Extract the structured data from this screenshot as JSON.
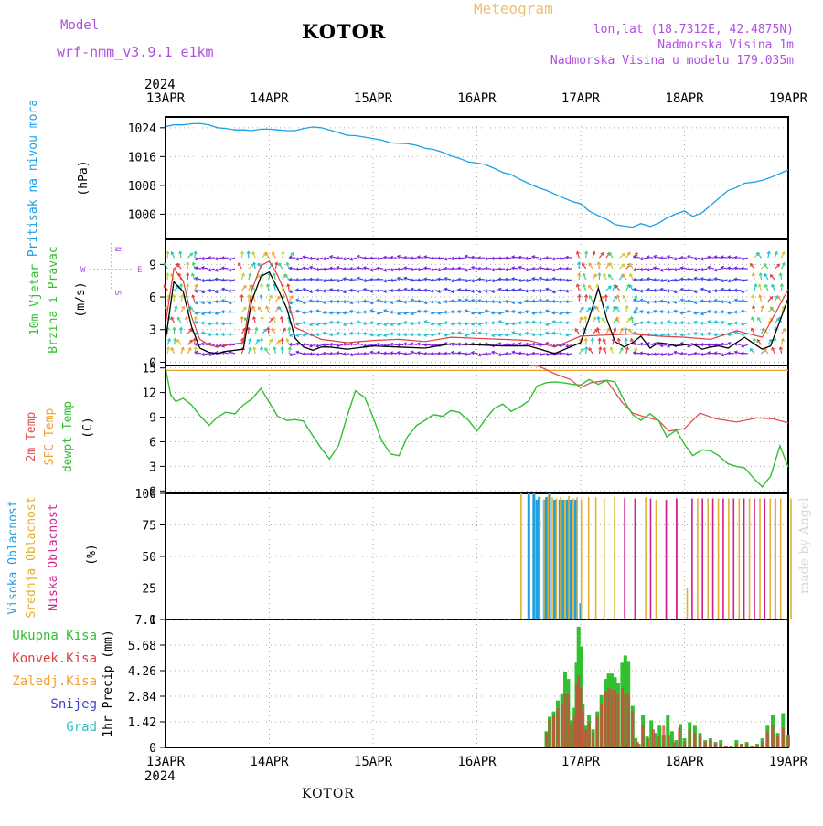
{
  "header": {
    "title": "KOTOR",
    "model_label": "Model",
    "model_name": "wrf-nmm_v3.9.1 e1km",
    "meteogram_label": "Meteogram",
    "lonlat": "lon,lat (18.7312E, 42.4875N)",
    "elevation": "Nadmorska Visina 1m",
    "model_elevation": "Nadmorska Visina u modelu 179.035m",
    "bottom_name": "KOTOR",
    "made_by": "made by Angel"
  },
  "colors": {
    "pressure": "#1aa0e8",
    "wind_speed": "#000000",
    "gust": "#e04040",
    "temp_2m": "#e05050",
    "sfc_temp": "#f0a030",
    "dewpoint": "#30c030",
    "high_cloud": "#20a0e0",
    "mid_cloud": "#e0b030",
    "low_cloud": "#d02090",
    "total_precip": "#30c030",
    "conv_precip": "#e04040",
    "snow": "#4040d0",
    "hail": "#30c0c0"
  },
  "chart_data": [
    {
      "type": "line",
      "name": "pressure",
      "year": "2024",
      "x_tick_labels": [
        "13APR",
        "14APR",
        "15APR",
        "16APR",
        "17APR",
        "18APR",
        "19APR"
      ],
      "ylabel_lines": [
        "Pritisak na nivou mora",
        "(hPa)"
      ],
      "ylim": [
        993,
        1027
      ],
      "yticks": [
        1000,
        1008,
        1016,
        1024
      ],
      "grid": true,
      "x_days": [
        0,
        0.08,
        0.17,
        0.25,
        0.33,
        0.42,
        0.5,
        0.58,
        0.67,
        0.75,
        0.83,
        0.92,
        1,
        1.08,
        1.17,
        1.25,
        1.33,
        1.42,
        1.5,
        1.58,
        1.67,
        1.75,
        1.83,
        1.92,
        2,
        2.08,
        2.17,
        2.25,
        2.33,
        2.42,
        2.5,
        2.58,
        2.67,
        2.75,
        2.83,
        2.92,
        3,
        3.08,
        3.17,
        3.25,
        3.33,
        3.42,
        3.5,
        3.58,
        3.67,
        3.75,
        3.83,
        3.92,
        4,
        4.08,
        4.17,
        4.25,
        4.33,
        4.42,
        4.5,
        4.58,
        4.67,
        4.75,
        4.83,
        4.92,
        5,
        5.08,
        5.17,
        5.25,
        5.33,
        5.42,
        5.5,
        5.58,
        5.67,
        5.75,
        5.83,
        5.92,
        6
      ],
      "values": [
        1024.3,
        1024.8,
        1024.8,
        1025.1,
        1025.2,
        1024.8,
        1024,
        1023.8,
        1023.4,
        1023.4,
        1023.2,
        1023.6,
        1023.6,
        1023.4,
        1023.2,
        1023.2,
        1023.8,
        1024.2,
        1024,
        1023.4,
        1022.6,
        1021.9,
        1021.8,
        1021.4,
        1021,
        1020.6,
        1019.8,
        1019.7,
        1019.6,
        1019.1,
        1018.3,
        1018,
        1017.2,
        1016.2,
        1015.5,
        1014.5,
        1014.2,
        1013.8,
        1012.7,
        1011.6,
        1011,
        1009.6,
        1008.5,
        1007.5,
        1006.6,
        1005.6,
        1004.6,
        1003.5,
        1002.9,
        1000.9,
        999.6,
        998.6,
        997.1,
        996.7,
        996.4,
        997.4,
        996.6,
        997.5,
        998.9,
        1000.1,
        1000.9,
        999.4,
        1000.4,
        1002.4,
        1004.4,
        1006.6,
        1007.4,
        1008.6,
        1008.9,
        1009.4,
        1010.2,
        1011.3,
        1012.3
      ]
    },
    {
      "type": "line",
      "name": "wind",
      "ylabel_lines": [
        "10m Vjetar",
        "Brzina i Pravac",
        "(m/s)"
      ],
      "ylim": [
        -0.3,
        11.3
      ],
      "yticks": [
        0,
        3,
        6,
        9
      ],
      "grid": true,
      "compass_labels": [
        "W",
        "E",
        "N",
        "S"
      ],
      "series": [
        {
          "name": "wind_speed",
          "x_days": [
            0,
            0.08,
            0.17,
            0.25,
            0.33,
            0.42,
            0.5,
            0.58,
            0.67,
            0.75,
            0.83,
            0.92,
            1,
            1.08,
            1.17,
            1.25,
            1.33,
            1.42,
            1.5,
            1.58,
            1.67,
            1.75,
            1.83,
            1.92,
            2,
            2.25,
            2.5,
            2.75,
            3,
            3.25,
            3.5,
            3.75,
            4,
            4.08,
            4.17,
            4.25,
            4.33,
            4.42,
            4.5,
            4.58,
            4.67,
            4.75,
            4.83,
            4.92,
            5,
            5.08,
            5.17,
            5.25,
            5.33,
            5.42,
            5.5,
            5.58,
            5.67,
            5.75,
            5.83,
            5.92,
            6
          ],
          "values": [
            2,
            7.4,
            6.5,
            3.3,
            1.3,
            0.9,
            0.8,
            1,
            1.1,
            1.2,
            5.6,
            7.9,
            8.3,
            6.8,
            4.9,
            2.2,
            1.4,
            1.1,
            1.4,
            1.4,
            1.3,
            1.2,
            1.3,
            1.4,
            1.5,
            1.4,
            1.3,
            1.7,
            1.6,
            1.5,
            1.5,
            0.8,
            1.8,
            4,
            6.8,
            4,
            1.9,
            1.4,
            1.8,
            2.4,
            1.3,
            1.8,
            1.7,
            1.5,
            1.6,
            1.7,
            1.2,
            1.4,
            1.5,
            1.3,
            1.8,
            2.3,
            1.7,
            1.2,
            1.5,
            3.8,
            5.9
          ]
        },
        {
          "name": "gust",
          "x_days": [
            0,
            0.08,
            0.17,
            0.25,
            0.33,
            0.42,
            0.5,
            0.58,
            0.67,
            0.75,
            0.83,
            0.92,
            1,
            1.08,
            1.17,
            1.25,
            1.5,
            1.75,
            2,
            2.25,
            2.5,
            2.75,
            3,
            3.25,
            3.5,
            3.75,
            4,
            4.25,
            4.5,
            4.75,
            5,
            5.25,
            5.5,
            5.75,
            6
          ],
          "values": [
            3.5,
            8.6,
            7.5,
            4.2,
            2.1,
            1.6,
            1.4,
            1.6,
            1.7,
            1.8,
            6.6,
            8.9,
            9.3,
            8,
            6,
            3.2,
            2.1,
            1.8,
            2,
            2.1,
            1.9,
            2.3,
            2.2,
            2.1,
            2,
            1.4,
            2.4,
            2.5,
            2.6,
            2.4,
            2.3,
            2.1,
            2.9,
            2.3,
            6.7
          ]
        }
      ]
    },
    {
      "type": "line",
      "name": "temperature",
      "ylabel_lines": [
        "2m Temp",
        "SFC Temp",
        "dewpt Temp",
        "(C)"
      ],
      "ylim": [
        -0.3,
        15.3
      ],
      "yticks": [
        0,
        3,
        6,
        9,
        12,
        15
      ],
      "grid": true,
      "series": [
        {
          "name": "2m Temp",
          "x_days": [
            3.5,
            3.6,
            3.75,
            3.9,
            4.0,
            4.1,
            4.25,
            4.4,
            4.5,
            4.6,
            4.75,
            4.85,
            5.0,
            5.15,
            5.3,
            5.5,
            5.7,
            5.85,
            6.0
          ],
          "values": [
            15.3,
            15.2,
            14.3,
            13.6,
            12.6,
            13.2,
            13.5,
            10.8,
            9.5,
            9.1,
            8.6,
            7.3,
            7.6,
            9.5,
            8.8,
            8.4,
            8.9,
            8.8,
            8.3
          ]
        },
        {
          "name": "SFC Temp",
          "x_days": [
            0,
            6
          ],
          "values": [
            14.7,
            14.7
          ]
        },
        {
          "name": "dewpt Temp",
          "x_days": [
            0,
            0.05,
            0.1,
            0.17,
            0.25,
            0.33,
            0.42,
            0.5,
            0.58,
            0.67,
            0.75,
            0.83,
            0.92,
            1,
            1.08,
            1.17,
            1.25,
            1.33,
            1.42,
            1.5,
            1.58,
            1.67,
            1.75,
            1.83,
            1.92,
            2,
            2.08,
            2.17,
            2.25,
            2.33,
            2.42,
            2.5,
            2.58,
            2.67,
            2.75,
            2.83,
            2.92,
            3,
            3.08,
            3.17,
            3.25,
            3.33,
            3.42,
            3.5,
            3.58,
            3.67,
            3.75,
            3.83,
            3.92,
            4,
            4.08,
            4.17,
            4.25,
            4.33,
            4.42,
            4.5,
            4.58,
            4.67,
            4.75,
            4.83,
            4.92,
            5,
            5.08,
            5.17,
            5.25,
            5.33,
            5.42,
            5.5,
            5.58,
            5.67,
            5.75,
            5.83,
            5.92,
            6
          ],
          "values": [
            15,
            11.7,
            10.9,
            11.3,
            10.5,
            9.2,
            8,
            9,
            9.6,
            9.4,
            10.5,
            11.2,
            12.5,
            10.8,
            9.1,
            8.6,
            8.7,
            8.5,
            6.7,
            5.2,
            3.9,
            5.6,
            9.1,
            12.2,
            11.4,
            9,
            6.2,
            4.5,
            4.3,
            6.6,
            8,
            8.6,
            9.3,
            9.1,
            9.8,
            9.6,
            8.6,
            7.3,
            8.7,
            10.1,
            10.6,
            9.7,
            10.3,
            11,
            12.8,
            13.2,
            13.3,
            13.2,
            13,
            12.9,
            13.6,
            13,
            13.5,
            13.3,
            11,
            9.3,
            8.6,
            9.4,
            8.6,
            6.6,
            7.4,
            5.7,
            4.3,
            5,
            4.9,
            4.3,
            3.3,
            3,
            2.8,
            1.5,
            0.5,
            1.8,
            5.5,
            2.9
          ]
        }
      ]
    },
    {
      "type": "bar",
      "name": "cloud cover",
      "ylabel_lines": [
        "Visoka Oblacnost",
        "Srednja Oblacnost",
        "Niska Oblacnost",
        "(%)"
      ],
      "ylim": [
        0,
        100
      ],
      "yticks": [
        0,
        25,
        50,
        75,
        100
      ],
      "grid": true,
      "series": [
        {
          "name": "Visoka Oblacnost",
          "x_days": [
            3.5,
            3.55,
            3.55,
            3.58,
            3.6,
            3.65,
            3.67,
            3.7,
            3.75,
            3.8,
            3.83,
            3.87,
            3.9,
            3.92,
            3.95,
            4.0
          ],
          "values": [
            100,
            100,
            95,
            95,
            97,
            95,
            97,
            100,
            95,
            95,
            95,
            95,
            95,
            95,
            95,
            13
          ]
        },
        {
          "name": "Srednja Oblacnost",
          "x_days": [
            3.4,
            3.58,
            3.62,
            3.66,
            3.7,
            3.74,
            3.78,
            3.82,
            3.86,
            3.9,
            3.94,
            3.98,
            4.05,
            4.12,
            4.2,
            4.3,
            4.4,
            4.5,
            4.6,
            4.7,
            4.8,
            4.9,
            5.0,
            5.1,
            5.2,
            5.3,
            5.4,
            5.5,
            5.6,
            5.7,
            5.8,
            5.9,
            6.0
          ],
          "values": [
            100,
            98,
            95,
            98,
            97,
            96,
            97,
            95,
            98,
            96,
            97,
            95,
            97,
            97,
            96,
            97,
            97,
            96,
            97,
            95,
            95,
            96,
            25,
            96,
            96,
            96,
            96,
            96,
            96,
            96,
            96,
            96,
            96
          ]
        },
        {
          "name": "Niska Oblacnost",
          "x_days": [
            4.45,
            4.55,
            4.7,
            4.85,
            4.95,
            5.1,
            5.2,
            5.3,
            5.4,
            5.5,
            5.6,
            5.7,
            5.8,
            5.9
          ],
          "values": [
            96,
            96,
            96,
            95,
            96,
            96,
            96,
            96,
            96,
            96,
            96,
            96,
            96,
            96
          ]
        }
      ]
    },
    {
      "type": "bar",
      "name": "precipitation",
      "ylabel_lines": [
        "Ukupna Kisa",
        "Konvek.Kisa",
        "Zaledj.Kisa",
        "Snijeg",
        "Grad",
        "1hr Precip (mm)"
      ],
      "ylim": [
        0,
        7.1
      ],
      "yticks": [
        0,
        1.42,
        2.84,
        4.26,
        5.68,
        7.1
      ],
      "grid": true,
      "series": [
        {
          "name": "Ukupna Kisa",
          "x_days": [
            3.67,
            3.7,
            3.74,
            3.78,
            3.82,
            3.85,
            3.88,
            3.91,
            3.94,
            3.96,
            3.98,
            4.0,
            4.02,
            4.05,
            4.08,
            4.12,
            4.16,
            4.2,
            4.24,
            4.27,
            4.3,
            4.33,
            4.36,
            4.4,
            4.43,
            4.46,
            4.5,
            4.53,
            4.56,
            4.6,
            4.64,
            4.68,
            4.72,
            4.76,
            4.8,
            4.84,
            4.88,
            4.92,
            4.96,
            5.0,
            5.05,
            5.1,
            5.15,
            5.2,
            5.25,
            5.3,
            5.35,
            5.4,
            5.45,
            5.5,
            5.55,
            5.6,
            5.65,
            5.7,
            5.75,
            5.8,
            5.85,
            5.9,
            5.95,
            6.0
          ],
          "values": [
            0.9,
            1.7,
            2.0,
            2.6,
            3.0,
            4.2,
            3.8,
            1.5,
            2.2,
            4.7,
            6.7,
            5.6,
            2.4,
            1.2,
            1.8,
            1.0,
            2.0,
            2.9,
            3.8,
            4.1,
            4.1,
            3.9,
            3.6,
            4.7,
            5.1,
            4.8,
            2.3,
            0.5,
            0.2,
            1.8,
            0.6,
            1.5,
            0.8,
            1.2,
            0.7,
            1.8,
            0.9,
            0.4,
            1.3,
            0.5,
            1.4,
            1.2,
            0.8,
            0.4,
            0.5,
            0.3,
            0.4,
            0.1,
            0.1,
            0.4,
            0.2,
            0.3,
            0.1,
            0.2,
            0.5,
            1.2,
            1.8,
            0.8,
            1.9,
            0.7
          ]
        },
        {
          "name": "Konvek.Kisa",
          "x_days": [
            3.67,
            3.7,
            3.74,
            3.78,
            3.82,
            3.85,
            3.88,
            3.91,
            3.94,
            3.96,
            3.98,
            4.0,
            4.02,
            4.05,
            4.08,
            4.12,
            4.16,
            4.2,
            4.24,
            4.27,
            4.3,
            4.33,
            4.36,
            4.4,
            4.43,
            4.46,
            4.5,
            4.55,
            4.6,
            4.65,
            4.7,
            4.75,
            4.8,
            4.85,
            4.9,
            4.95,
            5.0,
            5.05,
            5.1,
            5.15,
            5.2,
            5.25,
            5.3,
            5.35,
            5.4,
            5.45,
            5.5,
            5.55,
            5.6,
            5.65,
            5.7,
            5.75,
            5.8,
            5.85,
            5.9,
            5.95,
            6.0
          ],
          "values": [
            0.8,
            1.5,
            1.8,
            2.2,
            2.4,
            3.0,
            3.0,
            1.3,
            1.8,
            3.5,
            4.0,
            3.3,
            2.0,
            1.0,
            1.4,
            0.8,
            1.7,
            2.4,
            3.1,
            3.3,
            3.2,
            3.2,
            3.0,
            3.3,
            3.0,
            3.0,
            2.0,
            0.3,
            1.2,
            0.5,
            1.0,
            0.6,
            1.2,
            0.7,
            0.3,
            1.1,
            0.3,
            1.0,
            0.8,
            0.6,
            0.3,
            0.4,
            0.2,
            0.2,
            0.1,
            0.1,
            0.2,
            0.2,
            0.2,
            0.1,
            0.1,
            0.3,
            0.9,
            1.2,
            0.6,
            1.1,
            0.6
          ]
        }
      ]
    }
  ]
}
